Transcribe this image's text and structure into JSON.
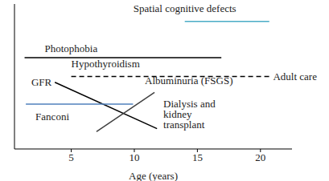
{
  "chart_data": {
    "type": "line",
    "xlabel": "Age (years)",
    "xlim": [
      0.5,
      22.5
    ],
    "xticks": [
      5,
      10,
      15,
      20
    ],
    "ylim": [
      0,
      10
    ],
    "tick_labels": "x",
    "grid": false,
    "series": [
      {
        "name": "Spatial cognitive defects",
        "color": "#4bacc6",
        "line_style": "solid",
        "x": [
          14.0,
          20.7
        ],
        "values": [
          8.8,
          8.8
        ]
      },
      {
        "name": "Photophobia",
        "color": "#000000",
        "line_style": "solid",
        "x": [
          1.3,
          16.9
        ],
        "values": [
          6.3,
          6.3
        ]
      },
      {
        "name": "Hypothyroidism",
        "color": "#000000",
        "line_style": "dashed",
        "x": [
          5.0,
          20.7
        ],
        "values": [
          5.0,
          5.0
        ]
      },
      {
        "name": "GFR",
        "color": "#000000",
        "line_style": "solid",
        "x": [
          3.7,
          11.8
        ],
        "values": [
          4.6,
          1.4
        ]
      },
      {
        "name": "Albuminuria (FSGS)",
        "color": "#404040",
        "line_style": "solid",
        "x": [
          7.0,
          11.6
        ],
        "values": [
          1.2,
          3.9
        ]
      },
      {
        "name": "Fanconi",
        "color": "#4f81bd",
        "line_style": "solid",
        "x": [
          1.4,
          9.9
        ],
        "values": [
          3.1,
          3.1
        ]
      }
    ],
    "annotations": [
      {
        "text": "Adult care",
        "x": 21.0,
        "y": 5.0
      },
      {
        "text": "Dialysis and kidney transplant",
        "x": 12.3,
        "y": 3.4
      }
    ]
  }
}
